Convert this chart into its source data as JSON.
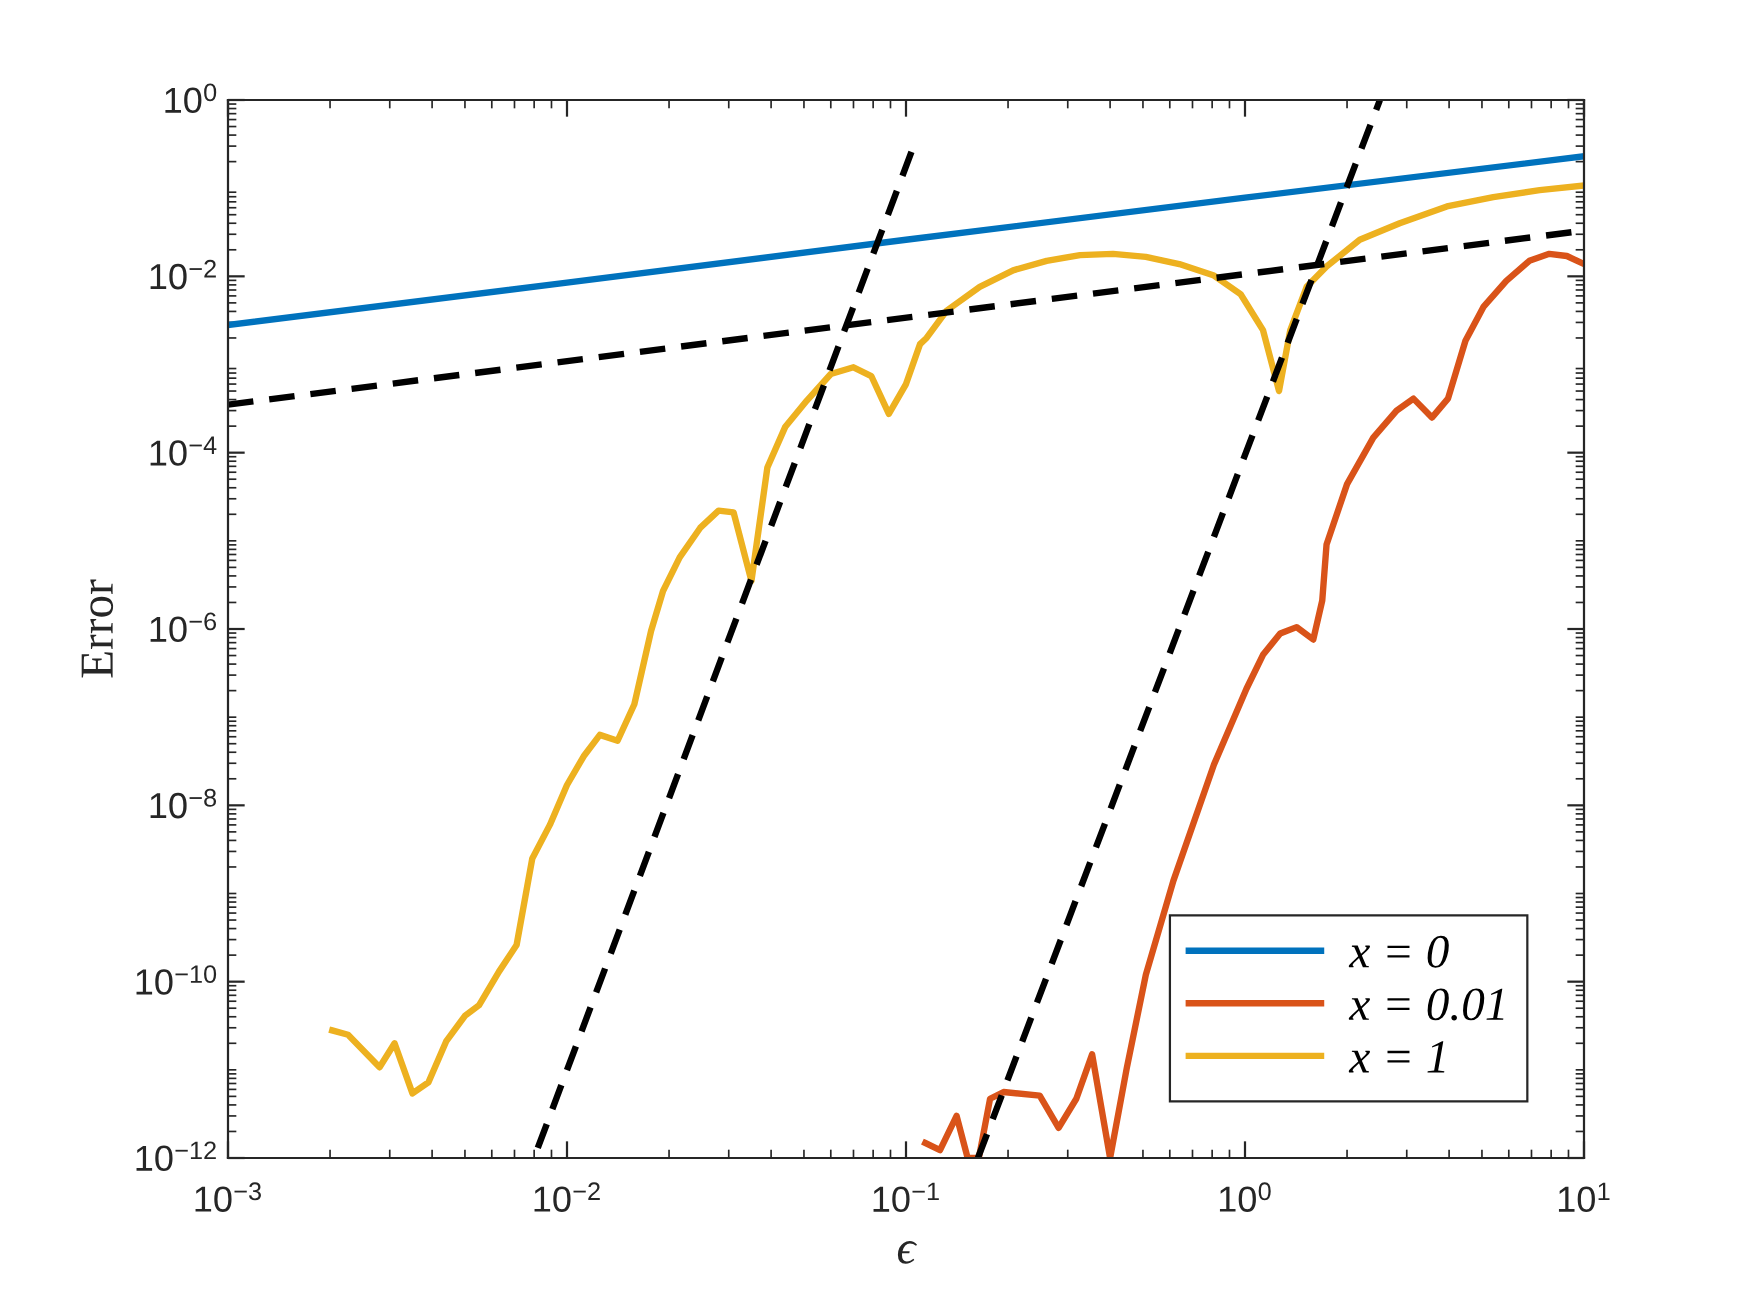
{
  "chart_data": {
    "type": "line",
    "xlabel": "ϵ",
    "ylabel": "Error",
    "log": "xy",
    "grid": false,
    "legend": "bottom right",
    "line_style": "solid",
    "marker": "none",
    "xlim": [
      0.001,
      10
    ],
    "ylim": [
      1e-12,
      1
    ],
    "xticks": [
      {
        "value": 0.001,
        "label": "10$^{−3}$"
      },
      {
        "value": 0.01,
        "label": "10$^{−2}$"
      },
      {
        "value": 0.1,
        "label": "10$^{−1}$"
      },
      {
        "value": 1,
        "label": "10$^{0}$"
      },
      {
        "value": 10,
        "label": "10$^{1}$"
      }
    ],
    "yticks": [
      {
        "value": 1e-12,
        "label": "10$^{−12}$"
      },
      {
        "value": 1e-10,
        "label": "10$^{−10}$"
      },
      {
        "value": 1e-08,
        "label": "10$^{−8}$"
      },
      {
        "value": 1e-06,
        "label": "10$^{−6}$"
      },
      {
        "value": 0.0001,
        "label": "10$^{−4}$"
      },
      {
        "value": 0.01,
        "label": "10$^{−2}$"
      },
      {
        "value": 1,
        "label": "10$^{0}$"
      }
    ],
    "series": [
      {
        "name": "x = 0",
        "color": "#0072bd",
        "x": [
          0.001,
          0.01,
          0.1,
          1,
          10
        ],
        "values": [
          0.0028,
          0.0085,
          0.026,
          0.078,
          0.23
        ]
      },
      {
        "name": "x = 0.01",
        "color": "#d95319",
        "x": [
          0.114,
          0.126,
          0.141,
          0.152,
          0.164,
          0.177,
          0.194,
          0.248,
          0.282,
          0.318,
          0.354,
          0.4,
          0.448,
          0.51,
          0.615,
          0.81,
          1.01,
          1.13,
          1.27,
          1.42,
          1.59,
          1.69,
          1.74,
          2.0,
          2.39,
          2.8,
          3.14,
          3.56,
          3.97,
          4.47,
          5.05,
          5.9,
          6.9,
          7.9,
          8.9,
          10
        ],
        "values": [
          1.48e-12,
          1.23e-12,
          3e-12,
          1e-12,
          1e-12,
          4.7e-12,
          5.6e-12,
          5.1e-12,
          2.2e-12,
          4.7e-12,
          1.5e-11,
          1e-12,
          1.05e-11,
          1.2e-10,
          1.4e-09,
          2.9e-08,
          2.1e-07,
          5.1e-07,
          8.9e-07,
          1.05e-06,
          7.6e-07,
          2.1e-06,
          9.1e-06,
          4.4e-05,
          0.000148,
          0.0003,
          0.00041,
          0.00025,
          0.00041,
          0.00186,
          0.0045,
          0.0089,
          0.015,
          0.018,
          0.017,
          0.0138
        ]
      },
      {
        "name": "x = 1",
        "color": "#edb120",
        "x": [
          0.00203,
          0.00226,
          0.0028,
          0.0031,
          0.0035,
          0.0039,
          0.0044,
          0.005,
          0.0055,
          0.0063,
          0.0071,
          0.0079,
          0.0089,
          0.01,
          0.0112,
          0.0125,
          0.0141,
          0.0158,
          0.0177,
          0.0192,
          0.0215,
          0.0247,
          0.028,
          0.031,
          0.035,
          0.039,
          0.044,
          0.051,
          0.06,
          0.07,
          0.079,
          0.089,
          0.1,
          0.11,
          0.115,
          0.132,
          0.165,
          0.207,
          0.26,
          0.326,
          0.408,
          0.51,
          0.64,
          0.81,
          0.97,
          1.13,
          1.26,
          1.36,
          1.52,
          1.74,
          2.18,
          2.86,
          3.94,
          5.4,
          7.4,
          10
        ],
        "values": [
          2.8e-11,
          2.5e-11,
          1.07e-11,
          2e-11,
          5.4e-12,
          7.2e-12,
          2.1e-11,
          4.1e-11,
          5.4e-11,
          1.3e-10,
          2.6e-10,
          2.5e-09,
          6e-09,
          1.7e-08,
          3.6e-08,
          6.3e-08,
          5.4e-08,
          1.4e-07,
          9.5e-07,
          2.7e-06,
          6.5e-06,
          1.4e-05,
          2.2e-05,
          2.1e-05,
          3.5e-06,
          6.8e-05,
          0.000195,
          0.00039,
          0.00078,
          0.00093,
          0.00074,
          0.000275,
          0.0006,
          0.0017,
          0.002,
          0.0041,
          0.0076,
          0.0117,
          0.015,
          0.0174,
          0.018,
          0.0166,
          0.0138,
          0.0102,
          0.0063,
          0.00245,
          0.0005,
          0.00245,
          0.0076,
          0.0129,
          0.026,
          0.04,
          0.062,
          0.079,
          0.095,
          0.107
        ]
      },
      {
        "color": "#000000",
        "line_style": "dashed",
        "x": [
          0.001,
          10
        ],
        "values": [
          0.00035,
          0.033
        ]
      },
      {
        "color": "#000000",
        "line_style": "dashed",
        "x": [
          0.0082,
          0.106
        ],
        "values": [
          1.3e-12,
          0.32
        ]
      },
      {
        "color": "#000000",
        "line_style": "dashed",
        "x": [
          0.163,
          2.5
        ],
        "values": [
          1e-12,
          1.0
        ]
      }
    ]
  }
}
